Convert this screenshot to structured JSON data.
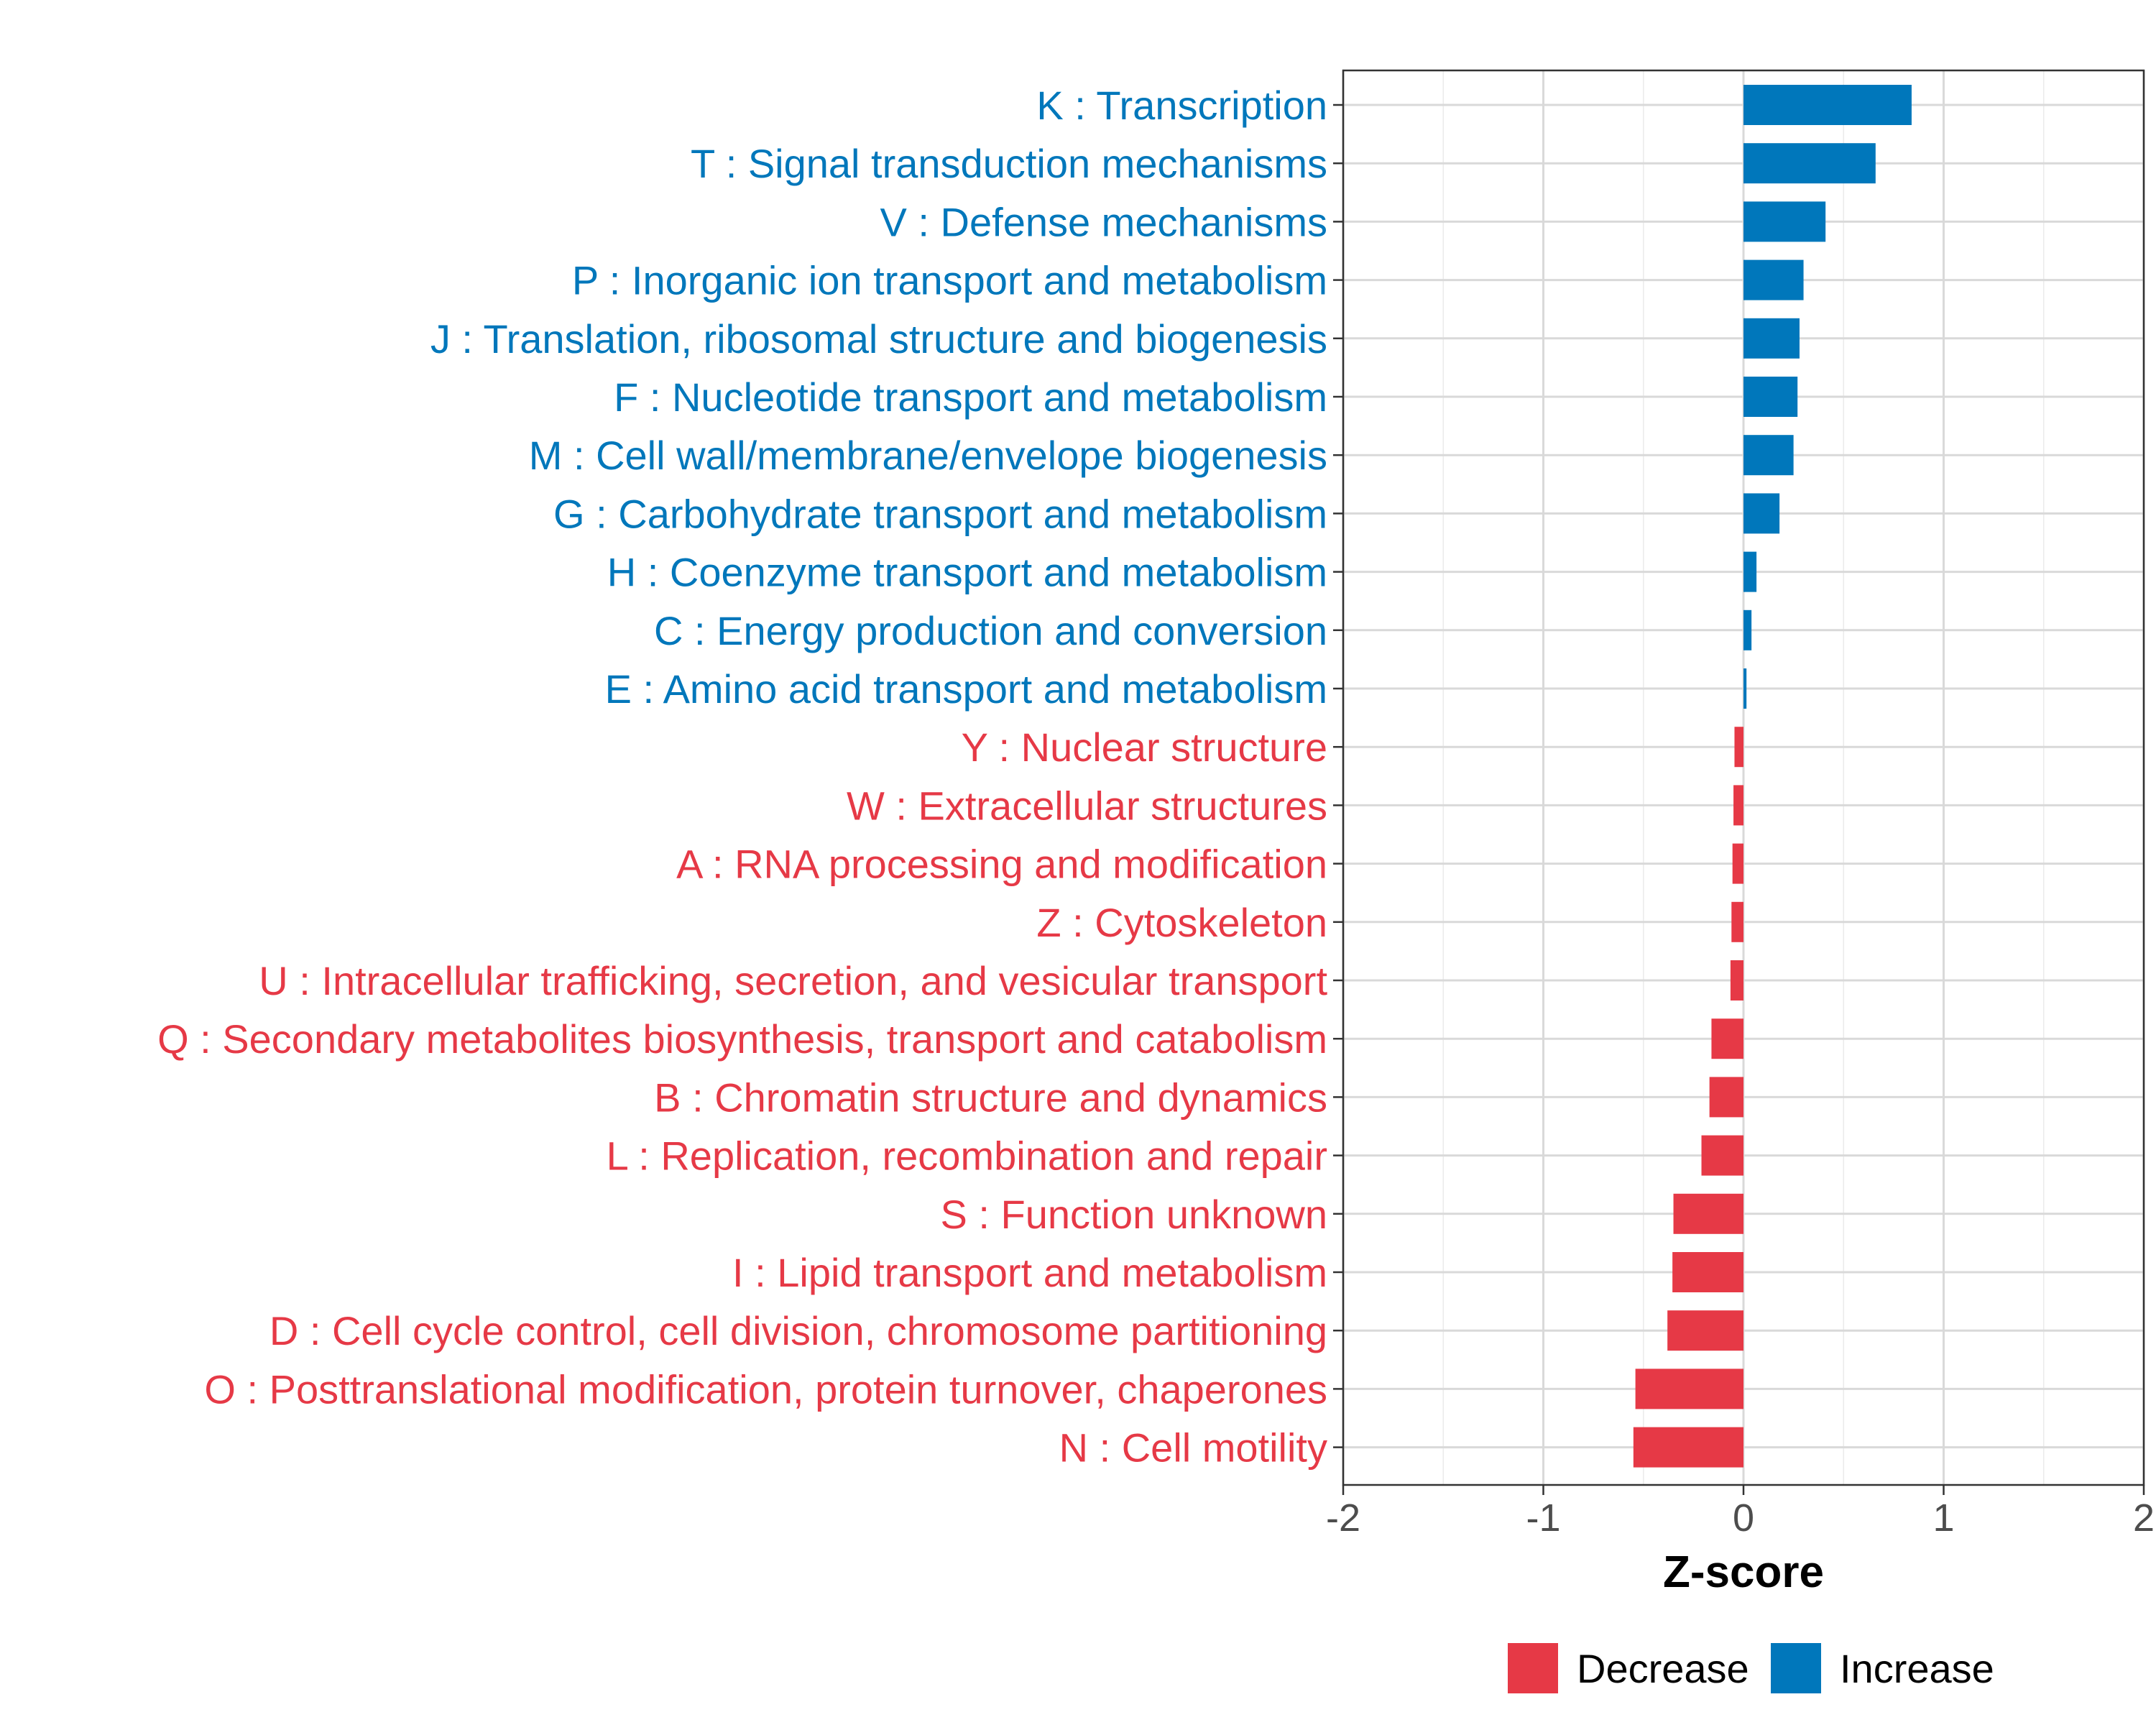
{
  "chart_data": {
    "type": "bar",
    "orientation": "horizontal",
    "title": "",
    "xlabel": "Z-score",
    "ylabel": "",
    "xlim": [
      -2,
      2
    ],
    "xticks": [
      -2,
      -1,
      0,
      1,
      2
    ],
    "xtick_labels": [
      "-2",
      "-1",
      "0",
      "1",
      "2"
    ],
    "grid": true,
    "legend_position": "bottom",
    "colors": {
      "Decrease": "#e63946",
      "Increase": "#0077bb"
    },
    "legend": [
      {
        "name": "Decrease",
        "color": "#e63946"
      },
      {
        "name": "Increase",
        "color": "#0077bb"
      }
    ],
    "categories": [
      "K : Transcription",
      "T : Signal transduction mechanisms",
      "V : Defense mechanisms",
      "P : Inorganic ion transport and metabolism",
      "J : Translation, ribosomal structure and biogenesis",
      "F : Nucleotide transport and metabolism",
      "M : Cell wall/membrane/envelope biogenesis",
      "G : Carbohydrate transport and metabolism",
      "H : Coenzyme transport and metabolism",
      "C : Energy production and conversion",
      "E : Amino acid transport and metabolism",
      "Y : Nuclear structure",
      "W : Extracellular structures",
      "A : RNA processing and modification",
      "Z : Cytoskeleton",
      "U : Intracellular trafficking, secretion, and vesicular transport",
      "Q : Secondary metabolites biosynthesis, transport and catabolism",
      "B : Chromatin structure and dynamics",
      "L : Replication, recombination and repair",
      "S : Function unknown",
      "I : Lipid transport and metabolism",
      "D : Cell cycle control, cell division, chromosome partitioning",
      "O : Posttranslational modification, protein turnover, chaperones",
      "N : Cell motility"
    ],
    "values": [
      0.84,
      0.66,
      0.41,
      0.3,
      0.28,
      0.27,
      0.25,
      0.18,
      0.065,
      0.04,
      0.015,
      -0.045,
      -0.05,
      -0.055,
      -0.06,
      -0.065,
      -0.16,
      -0.17,
      -0.21,
      -0.35,
      -0.355,
      -0.38,
      -0.54,
      -0.55
    ],
    "groups": [
      "Increase",
      "Increase",
      "Increase",
      "Increase",
      "Increase",
      "Increase",
      "Increase",
      "Increase",
      "Increase",
      "Increase",
      "Increase",
      "Decrease",
      "Decrease",
      "Decrease",
      "Decrease",
      "Decrease",
      "Decrease",
      "Decrease",
      "Decrease",
      "Decrease",
      "Decrease",
      "Decrease",
      "Decrease",
      "Decrease"
    ]
  }
}
